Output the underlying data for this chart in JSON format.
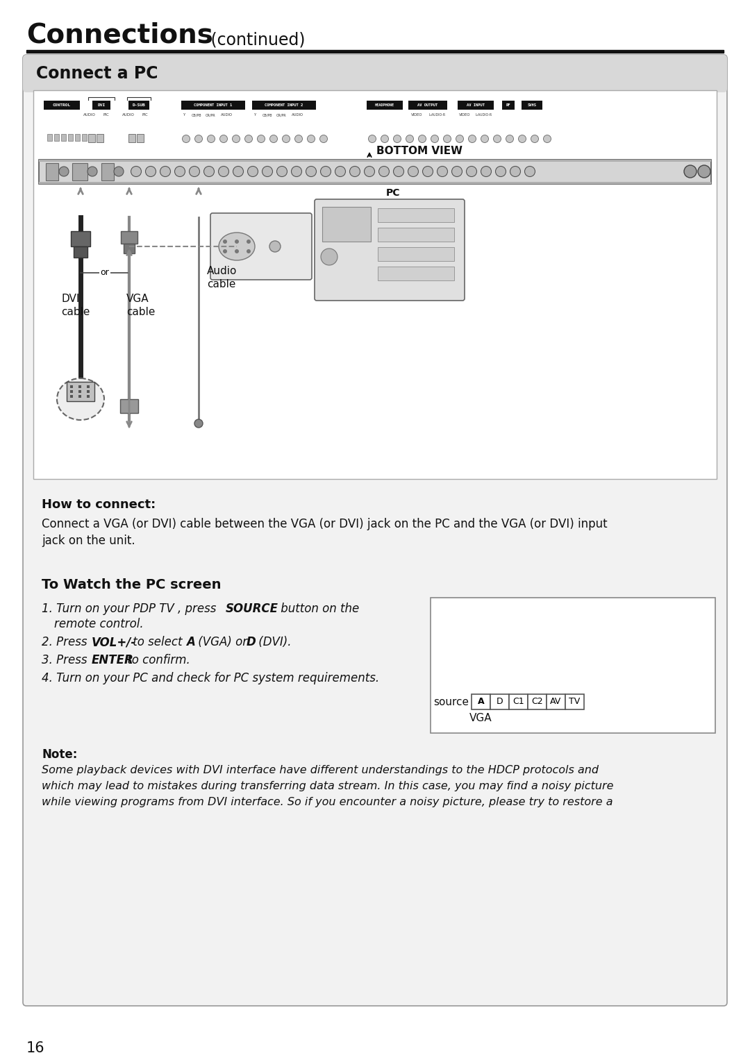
{
  "page_bg": "#ffffff",
  "title_main": "Connections",
  "title_continued": " (continued)",
  "section1_title": "Connect a PC",
  "how_to_connect_title": "How to connect:",
  "how_to_connect_body1": "Connect a VGA (or DVI) cable between the VGA (or DVI) jack on the PC and the VGA (or DVI) input",
  "how_to_connect_body2": "jack on the unit.",
  "watch_title": "To Watch the PC screen",
  "watch_step1a": "1. Turn on your PDP TV , press ",
  "watch_step1b": "SOURCE",
  "watch_step1c": "     button on the",
  "watch_step1d": "   remote control.",
  "watch_step2a": "2. Press ",
  "watch_step2b": "VOL+/-",
  "watch_step2c": " to select ",
  "watch_step2d": "A",
  "watch_step2e": " (VGA) or ",
  "watch_step2f": "D",
  "watch_step2g": " (DVI).",
  "watch_step3a": "3. Press ",
  "watch_step3b": "ENTER",
  "watch_step3c": " to confirm.",
  "watch_step4": "4. Turn on your PC and check for PC system requirements.",
  "note_title": "Note:",
  "note_body": "Some playback devices with DVI interface have different understandings to the HDCP protocols and\nwhich may lead to mistakes during transferring data stream. In this case, you may find a noisy picture\nwhile viewing programs from DVI interface. So if you encounter a noisy picture, please try to restore a",
  "source_label": "source",
  "source_items": [
    "A",
    "D",
    "C1",
    "C2",
    "AV",
    "TV"
  ],
  "source_selected": "A",
  "source_sub": "VGA",
  "page_number": "16",
  "outer_box_bg": "#f2f2f2",
  "section_header_bg": "#d8d8d8",
  "inner_box_bg": "#ffffff",
  "diag_bg": "#ffffff"
}
